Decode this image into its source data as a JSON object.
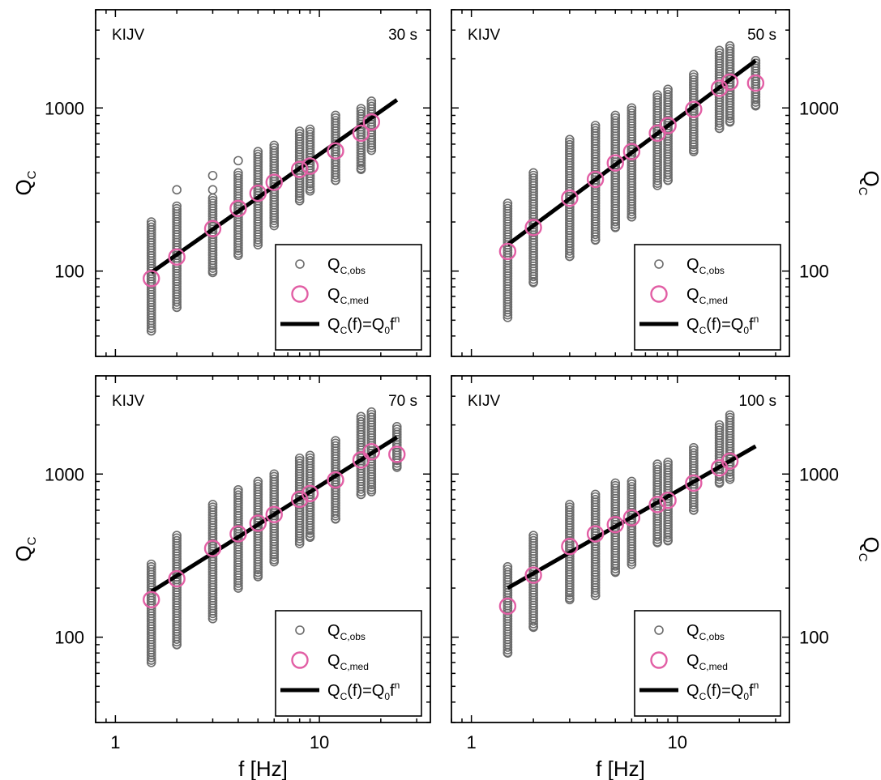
{
  "chart_data": {
    "type": "scatter",
    "x_axis": {
      "label": "f [Hz]",
      "scale": "log",
      "range": [
        0.8,
        35
      ],
      "ticks": [
        1,
        10
      ],
      "tick_labels": [
        "1",
        "10"
      ]
    },
    "y_axis": {
      "label": "Q",
      "label_sub": "C",
      "scale": "log",
      "range": [
        30,
        4000
      ],
      "ticks": [
        100,
        1000
      ],
      "tick_labels": [
        "100",
        "1000"
      ]
    },
    "legend": {
      "position": "bottom-right",
      "entries": [
        {
          "key": "obs",
          "main": "Q",
          "sub": "C,obs"
        },
        {
          "key": "med",
          "main": "Q",
          "sub": "C,med"
        },
        {
          "key": "fit",
          "main": "Q",
          "sub": "C",
          "main2": "(f)=Q",
          "sub2": "0",
          "main3": "f",
          "sup": "n"
        }
      ]
    },
    "panels": [
      {
        "station": "KIJV",
        "window": "30 s",
        "fit": {
          "x": [
            1.5,
            24
          ],
          "y": [
            98,
            1120
          ]
        },
        "medians": {
          "x": [
            1.5,
            2,
            3,
            4,
            5,
            6,
            8,
            9,
            12,
            16,
            18
          ],
          "y": [
            90,
            122,
            182,
            242,
            300,
            350,
            420,
            440,
            545,
            700,
            820
          ]
        },
        "observations": [
          {
            "f": 1.5,
            "min": 43,
            "max": 200
          },
          {
            "f": 2,
            "min": 60,
            "max": 250,
            "out": [
              315
            ]
          },
          {
            "f": 3,
            "min": 98,
            "max": 280,
            "out": [
              315,
              385
            ]
          },
          {
            "f": 4,
            "min": 125,
            "max": 400,
            "out": [
              475
            ]
          },
          {
            "f": 5,
            "min": 145,
            "max": 540
          },
          {
            "f": 6,
            "min": 190,
            "max": 590
          },
          {
            "f": 8,
            "min": 270,
            "max": 720
          },
          {
            "f": 9,
            "min": 310,
            "max": 740
          },
          {
            "f": 12,
            "min": 360,
            "max": 900
          },
          {
            "f": 16,
            "min": 420,
            "max": 990
          },
          {
            "f": 18,
            "min": 550,
            "max": 1100
          }
        ]
      },
      {
        "station": "KIJV",
        "window": "50 s",
        "fit": {
          "x": [
            1.5,
            24
          ],
          "y": [
            145,
            1950
          ]
        },
        "medians": {
          "x": [
            1.5,
            2,
            3,
            4,
            5,
            6,
            8,
            9,
            12,
            16,
            18,
            24
          ],
          "y": [
            132,
            185,
            280,
            365,
            460,
            540,
            700,
            780,
            980,
            1320,
            1440,
            1420
          ]
        },
        "observations": [
          {
            "f": 1.5,
            "min": 52,
            "max": 260
          },
          {
            "f": 2,
            "min": 85,
            "max": 400
          },
          {
            "f": 3,
            "min": 123,
            "max": 640
          },
          {
            "f": 4,
            "min": 155,
            "max": 780
          },
          {
            "f": 5,
            "min": 185,
            "max": 900
          },
          {
            "f": 6,
            "min": 215,
            "max": 1000
          },
          {
            "f": 8,
            "min": 335,
            "max": 1200
          },
          {
            "f": 9,
            "min": 360,
            "max": 1300
          },
          {
            "f": 12,
            "min": 540,
            "max": 1600
          },
          {
            "f": 16,
            "min": 750,
            "max": 2250
          },
          {
            "f": 18,
            "min": 820,
            "max": 2400
          },
          {
            "f": 24,
            "min": 1030,
            "max": 1950
          }
        ]
      },
      {
        "station": "KIJV",
        "window": "70 s",
        "fit": {
          "x": [
            1.5,
            24
          ],
          "y": [
            190,
            1680
          ]
        },
        "medians": {
          "x": [
            1.5,
            2,
            3,
            4,
            5,
            6,
            8,
            9,
            12,
            16,
            18,
            24
          ],
          "y": [
            170,
            228,
            350,
            430,
            500,
            565,
            700,
            760,
            920,
            1220,
            1370,
            1320
          ]
        },
        "observations": [
          {
            "f": 1.5,
            "min": 70,
            "max": 280
          },
          {
            "f": 2,
            "min": 90,
            "max": 420
          },
          {
            "f": 3,
            "min": 130,
            "max": 650
          },
          {
            "f": 4,
            "min": 200,
            "max": 800
          },
          {
            "f": 5,
            "min": 235,
            "max": 900
          },
          {
            "f": 6,
            "min": 290,
            "max": 1000
          },
          {
            "f": 8,
            "min": 375,
            "max": 1250
          },
          {
            "f": 9,
            "min": 410,
            "max": 1300
          },
          {
            "f": 12,
            "min": 530,
            "max": 1600
          },
          {
            "f": 16,
            "min": 750,
            "max": 2250
          },
          {
            "f": 18,
            "min": 780,
            "max": 2400
          },
          {
            "f": 24,
            "min": 1100,
            "max": 1950
          }
        ]
      },
      {
        "station": "KIJV",
        "window": "100 s",
        "fit": {
          "x": [
            1.5,
            24
          ],
          "y": [
            200,
            1480
          ]
        },
        "medians": {
          "x": [
            1.5,
            2,
            3,
            4,
            5,
            6,
            8,
            9,
            12,
            16,
            18
          ],
          "y": [
            155,
            240,
            360,
            430,
            490,
            540,
            650,
            690,
            880,
            1090,
            1200
          ]
        },
        "observations": [
          {
            "f": 1.5,
            "min": 80,
            "max": 270
          },
          {
            "f": 2,
            "min": 115,
            "max": 420
          },
          {
            "f": 3,
            "min": 170,
            "max": 650
          },
          {
            "f": 4,
            "min": 180,
            "max": 750
          },
          {
            "f": 5,
            "min": 250,
            "max": 880
          },
          {
            "f": 6,
            "min": 280,
            "max": 900
          },
          {
            "f": 8,
            "min": 380,
            "max": 1150
          },
          {
            "f": 9,
            "min": 390,
            "max": 1180
          },
          {
            "f": 12,
            "min": 600,
            "max": 1450
          },
          {
            "f": 16,
            "min": 880,
            "max": 2000
          },
          {
            "f": 18,
            "min": 930,
            "max": 2300
          }
        ]
      }
    ]
  }
}
